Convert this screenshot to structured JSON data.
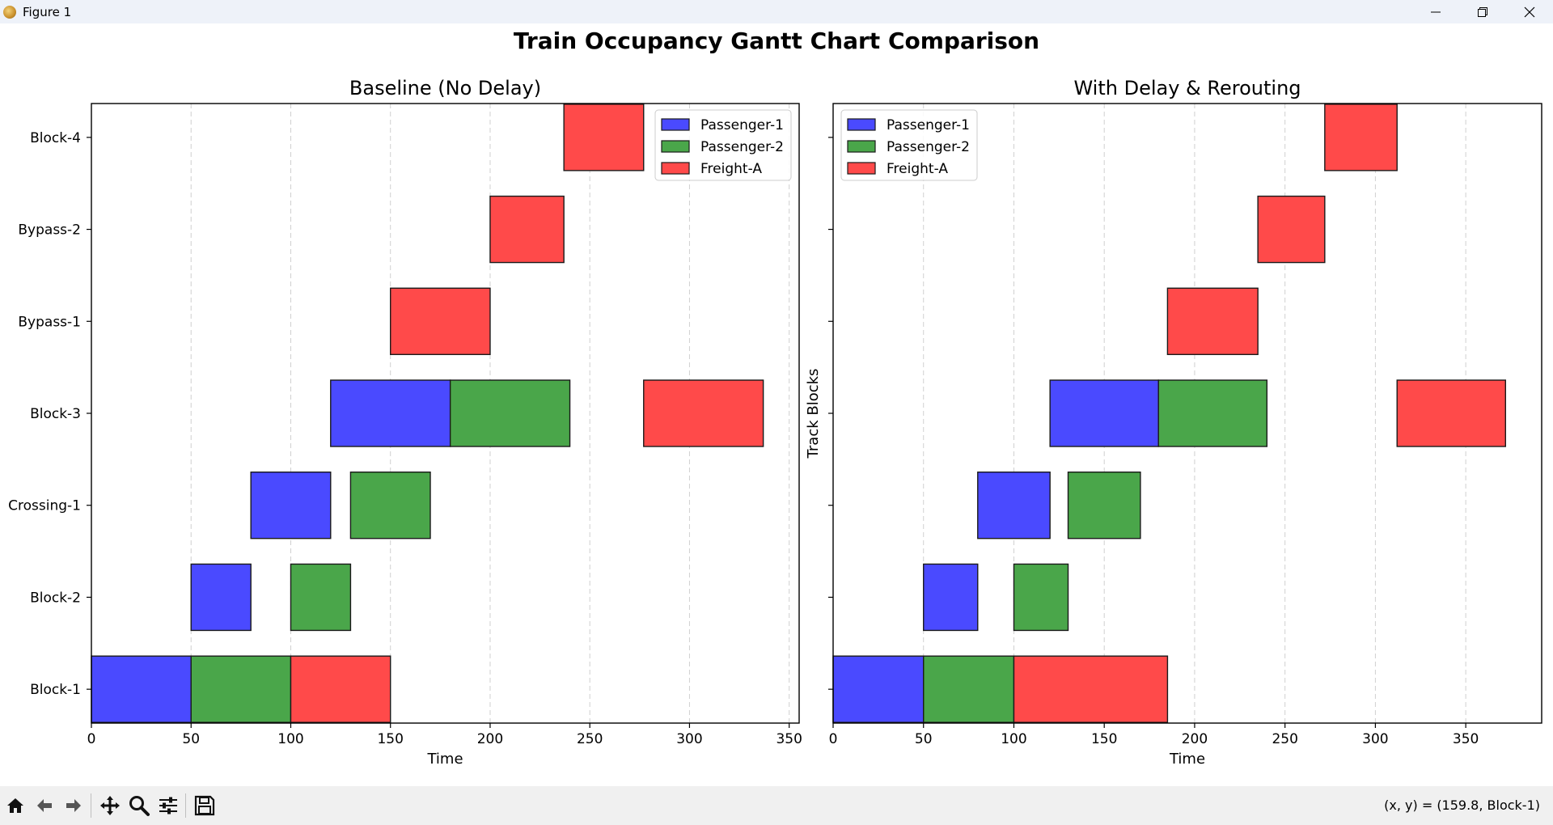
{
  "window": {
    "title": "Figure 1",
    "controls": [
      "minimize-icon",
      "restore-icon",
      "close-icon"
    ]
  },
  "figure": {
    "suptitle": "Train Occupancy Gantt Chart Comparison"
  },
  "toolbar": {
    "buttons": [
      "home-icon",
      "back-icon",
      "forward-icon",
      "pan-icon",
      "zoom-icon",
      "configure-subplots-icon",
      "save-icon"
    ],
    "coord_readout": "(x, y) = (159.8, Block-1)"
  },
  "colors": {
    "Passenger-1": "#4a4aff",
    "Passenger-2": "#4aa64a",
    "Freight-A": "#ff4a4a"
  },
  "chart_data": [
    {
      "type": "gantt",
      "title": "Baseline (No Delay)",
      "xlabel": "Time",
      "ylabel": "",
      "xlim": [
        0,
        355
      ],
      "xticks": [
        0,
        50,
        100,
        150,
        200,
        250,
        300,
        350
      ],
      "categories": [
        "Block-1",
        "Block-2",
        "Crossing-1",
        "Block-3",
        "Bypass-1",
        "Bypass-2",
        "Block-4"
      ],
      "grid": "x-dashed",
      "legend": {
        "position": "top-right",
        "entries": [
          "Passenger-1",
          "Passenger-2",
          "Freight-A"
        ]
      },
      "series": [
        {
          "name": "Passenger-1",
          "bars": [
            {
              "block": "Block-1",
              "start": 0,
              "end": 50
            },
            {
              "block": "Block-2",
              "start": 50,
              "end": 80
            },
            {
              "block": "Crossing-1",
              "start": 80,
              "end": 120
            },
            {
              "block": "Block-3",
              "start": 120,
              "end": 180
            }
          ]
        },
        {
          "name": "Passenger-2",
          "bars": [
            {
              "block": "Block-1",
              "start": 50,
              "end": 100
            },
            {
              "block": "Block-2",
              "start": 100,
              "end": 130
            },
            {
              "block": "Crossing-1",
              "start": 130,
              "end": 170
            },
            {
              "block": "Block-3",
              "start": 180,
              "end": 240
            }
          ]
        },
        {
          "name": "Freight-A",
          "bars": [
            {
              "block": "Block-1",
              "start": 100,
              "end": 150
            },
            {
              "block": "Bypass-1",
              "start": 150,
              "end": 200
            },
            {
              "block": "Bypass-2",
              "start": 200,
              "end": 237
            },
            {
              "block": "Block-4",
              "start": 237,
              "end": 277
            },
            {
              "block": "Block-3",
              "start": 277,
              "end": 337
            }
          ]
        }
      ]
    },
    {
      "type": "gantt",
      "title": "With Delay & Rerouting",
      "xlabel": "Time",
      "ylabel": "Track Blocks",
      "xlim": [
        0,
        392
      ],
      "xticks": [
        0,
        50,
        100,
        150,
        200,
        250,
        300,
        350
      ],
      "categories": [
        "Block-1",
        "Block-2",
        "Crossing-1",
        "Block-3",
        "Bypass-1",
        "Bypass-2",
        "Block-4"
      ],
      "grid": "x-dashed",
      "legend": {
        "position": "top-left",
        "entries": [
          "Passenger-1",
          "Passenger-2",
          "Freight-A"
        ]
      },
      "series": [
        {
          "name": "Passenger-1",
          "bars": [
            {
              "block": "Block-1",
              "start": 0,
              "end": 50
            },
            {
              "block": "Block-2",
              "start": 50,
              "end": 80
            },
            {
              "block": "Crossing-1",
              "start": 80,
              "end": 120
            },
            {
              "block": "Block-3",
              "start": 120,
              "end": 180
            }
          ]
        },
        {
          "name": "Passenger-2",
          "bars": [
            {
              "block": "Block-1",
              "start": 50,
              "end": 100
            },
            {
              "block": "Block-2",
              "start": 100,
              "end": 130
            },
            {
              "block": "Crossing-1",
              "start": 130,
              "end": 170
            },
            {
              "block": "Block-3",
              "start": 180,
              "end": 240
            }
          ]
        },
        {
          "name": "Freight-A",
          "bars": [
            {
              "block": "Block-1",
              "start": 100,
              "end": 185
            },
            {
              "block": "Bypass-1",
              "start": 185,
              "end": 235
            },
            {
              "block": "Bypass-2",
              "start": 235,
              "end": 272
            },
            {
              "block": "Block-4",
              "start": 272,
              "end": 312
            },
            {
              "block": "Block-3",
              "start": 312,
              "end": 372
            }
          ]
        }
      ]
    }
  ]
}
